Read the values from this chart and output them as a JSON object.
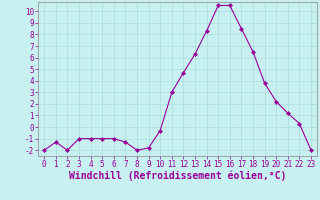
{
  "x": [
    0,
    1,
    2,
    3,
    4,
    5,
    6,
    7,
    8,
    9,
    10,
    11,
    12,
    13,
    14,
    15,
    16,
    17,
    18,
    19,
    20,
    21,
    22,
    23
  ],
  "y": [
    -2,
    -1.3,
    -2,
    -1,
    -1,
    -1,
    -1,
    -1.3,
    -2,
    -1.8,
    -0.3,
    3,
    4.7,
    6.3,
    8.3,
    10.5,
    10.5,
    8.5,
    6.5,
    3.8,
    2.2,
    1.2,
    0.3,
    -2
  ],
  "line_color": "#990099",
  "marker": "D",
  "marker_size": 2.0,
  "bg_color": "#c8f0f0",
  "grid_color": "#aadddd",
  "xlabel": "Windchill (Refroidissement éolien,°C)",
  "xlim": [
    -0.5,
    23.5
  ],
  "ylim": [
    -2.5,
    10.8
  ],
  "yticks": [
    -2,
    -1,
    0,
    1,
    2,
    3,
    4,
    5,
    6,
    7,
    8,
    9,
    10
  ],
  "xticks": [
    0,
    1,
    2,
    3,
    4,
    5,
    6,
    7,
    8,
    9,
    10,
    11,
    12,
    13,
    14,
    15,
    16,
    17,
    18,
    19,
    20,
    21,
    22,
    23
  ],
  "tick_color": "#990099",
  "label_color": "#990099",
  "tick_fontsize": 5.5,
  "xlabel_fontsize": 7.0,
  "spine_color": "#888888"
}
